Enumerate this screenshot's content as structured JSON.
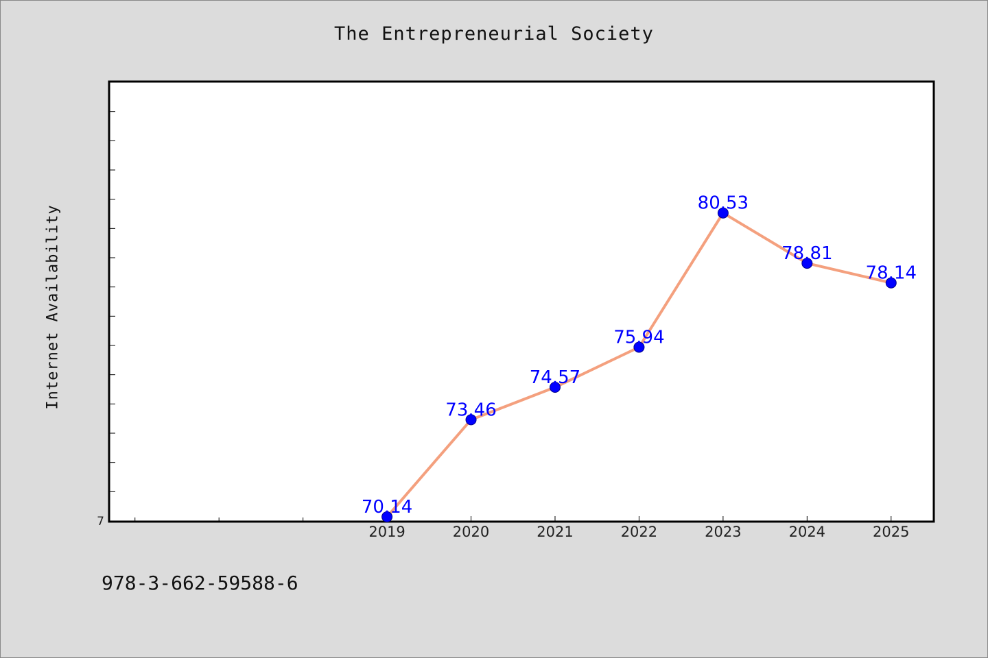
{
  "chart_data": {
    "type": "line",
    "title": "The Entrepreneurial Society",
    "xlabel": "",
    "ylabel": "Internet Availability",
    "x": [
      2019,
      2020,
      2021,
      2022,
      2023,
      2024,
      2025
    ],
    "values": [
      70.14,
      73.46,
      74.57,
      75.94,
      80.53,
      78.81,
      78.14
    ],
    "data_labels": [
      "70.14",
      "73.46",
      "74.57",
      "75.94",
      "80.53",
      "78.81",
      "78.14"
    ],
    "x_tick_labels": [
      "2019",
      "2020",
      "2021",
      "2022",
      "2023",
      "2024",
      "2025"
    ],
    "y_tick_labels": [
      "7"
    ],
    "xlim": [
      2015.7,
      2025.5
    ],
    "ylim": [
      70,
      85
    ],
    "grid": false,
    "line_color": "#f4a07e",
    "marker_color": "#0000ff",
    "label_color": "#0000ff"
  },
  "footer": {
    "code": "978-3-662-59588-6"
  }
}
